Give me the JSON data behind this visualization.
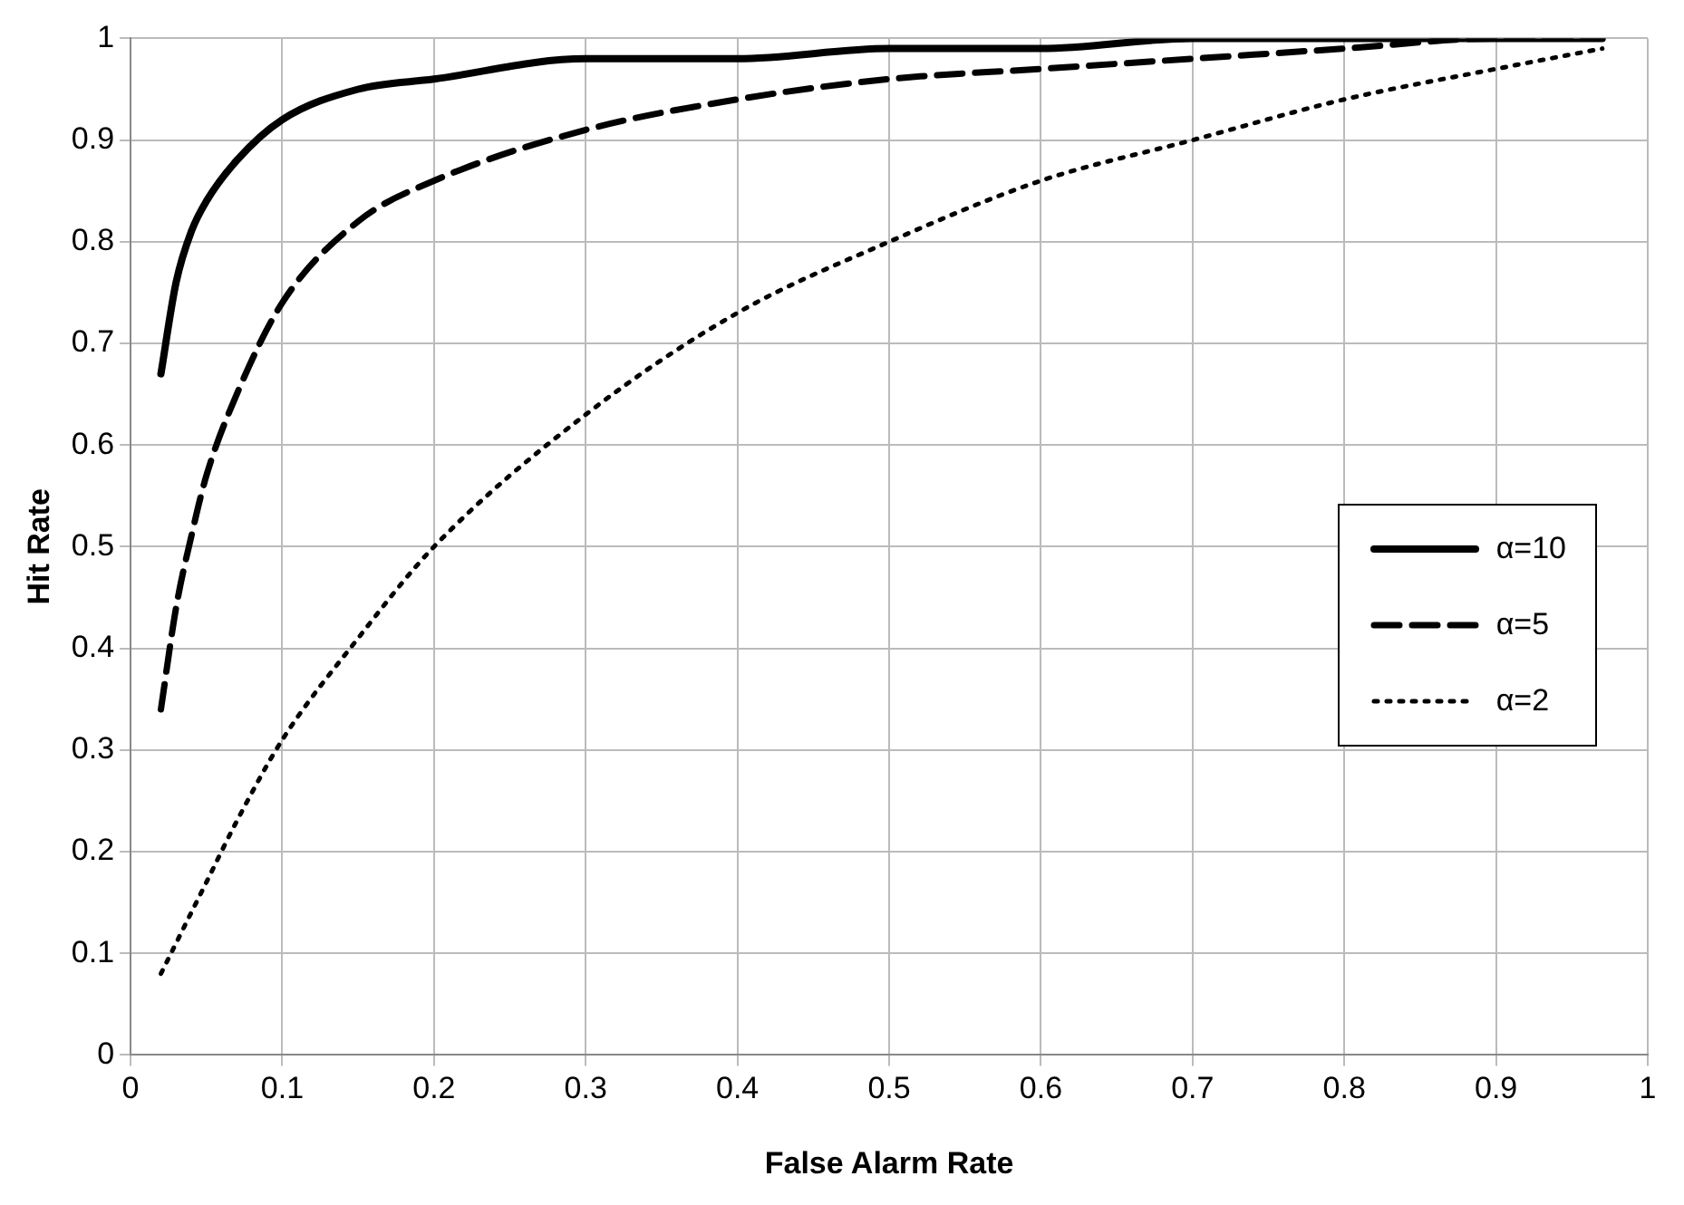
{
  "chart_data": {
    "type": "line",
    "xlabel": "False Alarm Rate",
    "ylabel": "Hit Rate",
    "xlim": [
      0,
      1
    ],
    "xticks": [
      0,
      0.1,
      0.2,
      0.3,
      0.4,
      0.5,
      0.6,
      0.7,
      0.8,
      0.9,
      1
    ],
    "ylim": [
      0,
      1
    ],
    "yticks": [
      0,
      0.1,
      0.2,
      0.3,
      0.4,
      0.5,
      0.6,
      0.7,
      0.8,
      0.9,
      1
    ],
    "grid": true,
    "legend": "center right",
    "marker": "none",
    "x": [
      0.02,
      0.03,
      0.04,
      0.05,
      0.07,
      0.1,
      0.15,
      0.2,
      0.3,
      0.4,
      0.5,
      0.6,
      0.7,
      0.8,
      0.9,
      0.97
    ],
    "series": [
      {
        "name": "α=10",
        "color": "#000000",
        "line_style": "solid",
        "values": [
          0.67,
          0.76,
          0.81,
          0.84,
          0.88,
          0.92,
          0.95,
          0.96,
          0.98,
          0.98,
          0.99,
          0.99,
          1.0,
          1.0,
          1.0,
          1.0
        ]
      },
      {
        "name": "α=5",
        "color": "#000000",
        "line_style": "dashed",
        "values": [
          0.34,
          0.44,
          0.51,
          0.57,
          0.65,
          0.74,
          0.82,
          0.86,
          0.91,
          0.94,
          0.96,
          0.97,
          0.98,
          0.99,
          1.0,
          1.0
        ]
      },
      {
        "name": "α=2",
        "color": "#000000",
        "line_style": "dotted",
        "values": [
          0.08,
          0.11,
          0.14,
          0.17,
          0.23,
          0.31,
          0.41,
          0.5,
          0.63,
          0.73,
          0.8,
          0.86,
          0.9,
          0.94,
          0.97,
          0.99
        ]
      }
    ]
  }
}
